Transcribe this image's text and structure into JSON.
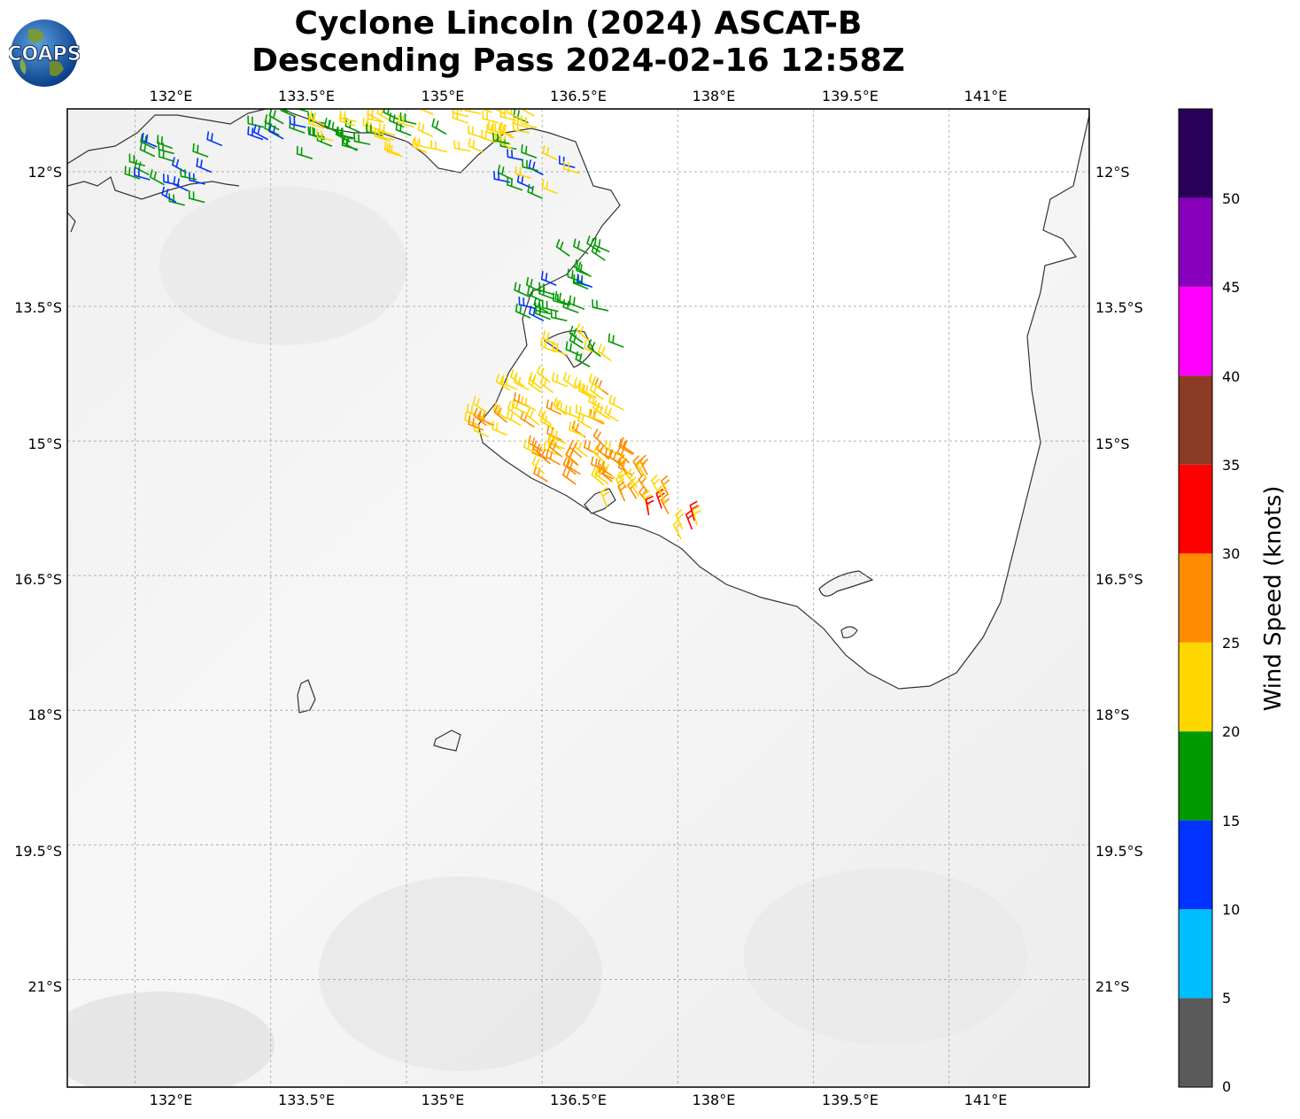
{
  "title": {
    "line1": "Cyclone Lincoln (2024) ASCAT-B",
    "line2": "Descending Pass 2024-02-16 12:58Z"
  },
  "logo": {
    "text": "COAPS"
  },
  "map": {
    "lon_range": [
      131.25,
      142.55
    ],
    "lat_range": [
      -22.2,
      -11.3
    ],
    "lon_ticks": [
      "132°E",
      "133.5°E",
      "135°E",
      "136.5°E",
      "138°E",
      "139.5°E",
      "141°E"
    ],
    "lat_ticks": [
      "12°S",
      "13.5°S",
      "15°S",
      "16.5°S",
      "18°S",
      "19.5°S",
      "21°S"
    ],
    "grid": true
  },
  "colorbar": {
    "title": "Wind Speed (knots)",
    "tick_labels": [
      "0",
      "5",
      "10",
      "15",
      "20",
      "25",
      "30",
      "35",
      "40",
      "45",
      "50"
    ],
    "bands": [
      {
        "range": [
          0,
          5
        ],
        "color": "#5a5a5a"
      },
      {
        "range": [
          5,
          10
        ],
        "color": "#00bfff"
      },
      {
        "range": [
          10,
          15
        ],
        "color": "#0033ff"
      },
      {
        "range": [
          15,
          20
        ],
        "color": "#009900"
      },
      {
        "range": [
          20,
          25
        ],
        "color": "#ffd700"
      },
      {
        "range": [
          25,
          30
        ],
        "color": "#ff8c00"
      },
      {
        "range": [
          30,
          35
        ],
        "color": "#ff0000"
      },
      {
        "range": [
          35,
          40
        ],
        "color": "#8b3a26"
      },
      {
        "range": [
          40,
          45
        ],
        "color": "#ff00ff"
      },
      {
        "range": [
          45,
          50
        ],
        "color": "#8800bb"
      },
      {
        "range": [
          50,
          55
        ],
        "color": "#2a005a"
      }
    ]
  }
}
